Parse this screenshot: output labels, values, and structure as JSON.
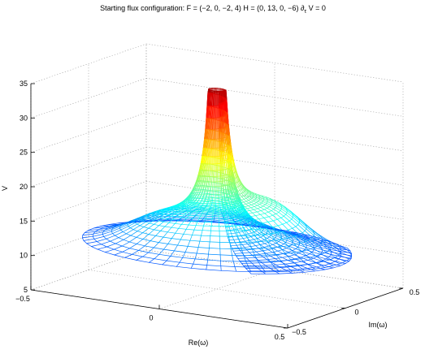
{
  "chart_data": {
    "type": "surface-mesh",
    "title": "Starting flux configuration: F = (−2, 0, −2, 4) H = (0, 13, 0, −6) ∂",
    "title_subscript": "τ",
    "title_tail": " V = 0",
    "xlabel": "Re(ω)",
    "ylabel": "Im(ω)",
    "zlabel": "V",
    "xlim": [
      -0.5,
      0.5
    ],
    "ylim": [
      -0.5,
      0.5
    ],
    "zlim": [
      5,
      35
    ],
    "x_ticks": [
      "−0.5",
      "0",
      "0.5"
    ],
    "y_ticks": [
      "−0.5",
      "0",
      "0.5"
    ],
    "z_ticks": [
      "5",
      "10",
      "15",
      "20",
      "25",
      "30",
      "35"
    ],
    "z_tick_values": [
      5,
      10,
      15,
      20,
      25,
      30,
      35
    ],
    "grid": true,
    "colormap": "jet",
    "surface": {
      "description_free": true,
      "peak_value": 34,
      "outer_rim_value": 10,
      "inner_radius": 0.03,
      "outer_radius": 0.48,
      "spiral_turns": 1.25
    }
  }
}
